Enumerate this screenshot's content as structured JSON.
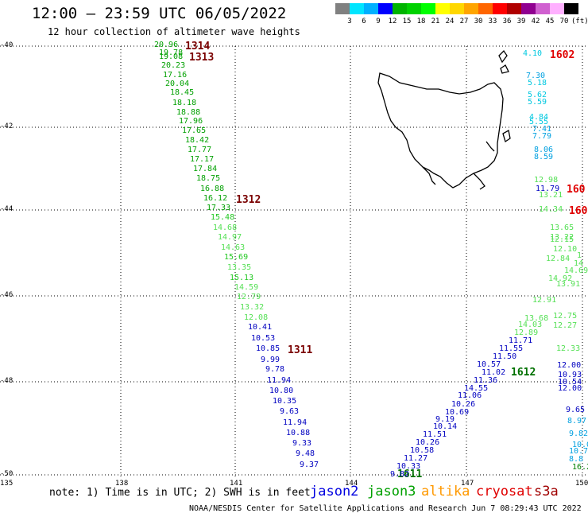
{
  "header": {
    "title": "12:00 — 23:59 UTC 06/05/2022",
    "subtitle": "12 hour collection of altimeter wave heights"
  },
  "color_scale": {
    "labels": [
      "3",
      "6",
      "9",
      "12",
      "15",
      "18",
      "21",
      "24",
      "27",
      "30",
      "33",
      "36",
      "39",
      "42",
      "45",
      "70",
      "(ft)"
    ],
    "colors": [
      "#808080",
      "#00e5ff",
      "#00b0ff",
      "#0000ff",
      "#00b400",
      "#00d200",
      "#00ff00",
      "#ffff00",
      "#ffd700",
      "#ffa500",
      "#ff6600",
      "#ff0000",
      "#b00000",
      "#900090",
      "#d060d0",
      "#ffb0ff",
      "#000000"
    ]
  },
  "axes": {
    "lat_labels": [
      "-40",
      "-42",
      "-44",
      "-46",
      "-48",
      "-50"
    ],
    "lon_labels": [
      "135",
      "138",
      "141",
      "144",
      "147",
      "150"
    ]
  },
  "tracks": [
    {
      "id": "1314",
      "color": "#7a0000"
    },
    {
      "id": "1313",
      "color": "#7a0000"
    },
    {
      "id": "1312",
      "color": "#7a0000"
    },
    {
      "id": "1311",
      "color": "#7a0000"
    },
    {
      "id": "1602",
      "color": "#e00000"
    },
    {
      "id": "160",
      "color": "#e00000"
    },
    {
      "id": "160",
      "color": "#e00000"
    },
    {
      "id": "1612",
      "color": "#007000"
    },
    {
      "id": "1611",
      "color": "#007000"
    }
  ],
  "readings": [
    {
      "v": "20.96",
      "c": "#00a000"
    },
    {
      "v": "19.78",
      "c": "#00a000"
    },
    {
      "v": "19.08",
      "c": "#00a000"
    },
    {
      "v": "20.23",
      "c": "#00a000"
    },
    {
      "v": "17.16",
      "c": "#00a000"
    },
    {
      "v": "20.04",
      "c": "#00a000"
    },
    {
      "v": "18.45",
      "c": "#00a000"
    },
    {
      "v": "18.18",
      "c": "#00a000"
    },
    {
      "v": "18.88",
      "c": "#00a000"
    },
    {
      "v": "17.96",
      "c": "#00a000"
    },
    {
      "v": "17.65",
      "c": "#00a000"
    },
    {
      "v": "18.42",
      "c": "#00a000"
    },
    {
      "v": "17.77",
      "c": "#00a000"
    },
    {
      "v": "17.17",
      "c": "#00a000"
    },
    {
      "v": "17.84",
      "c": "#00a000"
    },
    {
      "v": "18.75",
      "c": "#00a000"
    },
    {
      "v": "16.88",
      "c": "#00a000"
    },
    {
      "v": "16.12",
      "c": "#00a000"
    },
    {
      "v": "17.33",
      "c": "#00a000"
    },
    {
      "v": "15.48",
      "c": "#22c822"
    },
    {
      "v": "14.68",
      "c": "#55e055"
    },
    {
      "v": "14.97",
      "c": "#55e055"
    },
    {
      "v": "14.63",
      "c": "#55e055"
    },
    {
      "v": "15.69",
      "c": "#22c822"
    },
    {
      "v": "13.35",
      "c": "#55e055"
    },
    {
      "v": "15.13",
      "c": "#22c822"
    },
    {
      "v": "14.59",
      "c": "#55e055"
    },
    {
      "v": "12.79",
      "c": "#55e055"
    },
    {
      "v": "13.32",
      "c": "#55e055"
    },
    {
      "v": "12.08",
      "c": "#55e055"
    },
    {
      "v": "10.41",
      "c": "#0000c0"
    },
    {
      "v": "10.53",
      "c": "#0000c0"
    },
    {
      "v": "10.85",
      "c": "#0000c0"
    },
    {
      "v": "9.99",
      "c": "#0000c0"
    },
    {
      "v": "9.78",
      "c": "#0000c0"
    },
    {
      "v": "11.94",
      "c": "#0000c0"
    },
    {
      "v": "10.80",
      "c": "#0000c0"
    },
    {
      "v": "10.35",
      "c": "#0000c0"
    },
    {
      "v": "9.63",
      "c": "#0000c0"
    },
    {
      "v": "11.94",
      "c": "#0000c0"
    },
    {
      "v": "10.88",
      "c": "#0000c0"
    },
    {
      "v": "9.33",
      "c": "#0000c0"
    },
    {
      "v": "9.48",
      "c": "#0000c0"
    },
    {
      "v": "9.37",
      "c": "#0000c0"
    },
    {
      "v": "4.10",
      "c": "#00c8e0"
    },
    {
      "v": "7.30",
      "c": "#00a0e0"
    },
    {
      "v": "5.18",
      "c": "#00c8e0"
    },
    {
      "v": "5.62",
      "c": "#00c8e0"
    },
    {
      "v": "5.59",
      "c": "#00c8e0"
    },
    {
      "v": "4.84",
      "c": "#00c8e0"
    },
    {
      "v": "5.55",
      "c": "#00c8e0"
    },
    {
      "v": "7.41",
      "c": "#00a0e0"
    },
    {
      "v": "7.79",
      "c": "#00a0e0"
    },
    {
      "v": "8.06",
      "c": "#00a0e0"
    },
    {
      "v": "8.59",
      "c": "#00a0e0"
    },
    {
      "v": "12.98",
      "c": "#55e055"
    },
    {
      "v": "11.79",
      "c": "#0000c0"
    },
    {
      "v": "13.21",
      "c": "#55e055"
    },
    {
      "v": "14.34",
      "c": "#55e055"
    },
    {
      "v": "13.65",
      "c": "#55e055"
    },
    {
      "v": "13.22",
      "c": "#55e055"
    },
    {
      "v": "12.15",
      "c": "#55e055"
    },
    {
      "v": "12.10",
      "c": "#55e055"
    },
    {
      "v": "12.84",
      "c": "#55e055"
    },
    {
      "v": "14.69",
      "c": "#55e055"
    },
    {
      "v": "14.92",
      "c": "#55e055"
    },
    {
      "v": "13.91",
      "c": "#55e055"
    },
    {
      "v": "12.91",
      "c": "#55e055"
    },
    {
      "v": "13.68",
      "c": "#55e055"
    },
    {
      "v": "12.75",
      "c": "#55e055"
    },
    {
      "v": "14.03",
      "c": "#55e055"
    },
    {
      "v": "12.27",
      "c": "#55e055"
    },
    {
      "v": "12.89",
      "c": "#55e055"
    },
    {
      "v": "11.71",
      "c": "#0000c0"
    },
    {
      "v": "11.55",
      "c": "#0000c0"
    },
    {
      "v": "12.33",
      "c": "#55e055"
    },
    {
      "v": "11.50",
      "c": "#0000c0"
    },
    {
      "v": "10.57",
      "c": "#0000c0"
    },
    {
      "v": "11.02",
      "c": "#0000c0"
    },
    {
      "v": "12.00",
      "c": "#0000c0"
    },
    {
      "v": "11.36",
      "c": "#0000c0"
    },
    {
      "v": "14.55",
      "c": "#0000c0"
    },
    {
      "v": "10.93",
      "c": "#0000c0"
    },
    {
      "v": "10.54",
      "c": "#0000c0"
    },
    {
      "v": "12.00",
      "c": "#0000c0"
    },
    {
      "v": "11.06",
      "c": "#0000c0"
    },
    {
      "v": "10.26",
      "c": "#0000c0"
    },
    {
      "v": "10.69",
      "c": "#0000c0"
    },
    {
      "v": "9.19",
      "c": "#0000c0"
    },
    {
      "v": "10.14",
      "c": "#0000c0"
    },
    {
      "v": "11.51",
      "c": "#0000c0"
    },
    {
      "v": "10.26",
      "c": "#0000c0"
    },
    {
      "v": "10.58",
      "c": "#0000c0"
    },
    {
      "v": "11.27",
      "c": "#0000c0"
    },
    {
      "v": "10.33",
      "c": "#0000c0"
    },
    {
      "v": "9.82",
      "c": "#0000c0"
    },
    {
      "v": "9.65",
      "c": "#0000c0"
    },
    {
      "v": "8.97",
      "c": "#00a0e0"
    },
    {
      "v": "9.82",
      "c": "#00a0e0"
    },
    {
      "v": "10.0",
      "c": "#00a0e0"
    },
    {
      "v": "10.7",
      "c": "#00a0e0"
    },
    {
      "v": "8.8",
      "c": "#00a0e0"
    },
    {
      "v": "16.2",
      "c": "#008000"
    },
    {
      "v": "14",
      "c": "#55e055"
    },
    {
      "v": "1",
      "c": "#55e055"
    }
  ],
  "footer": {
    "note": "note:  1) Time is in UTC; 2) SWH is in feet",
    "satellites": [
      {
        "name": "jason2",
        "color": "#0000e0"
      },
      {
        "name": "jason3",
        "color": "#00a000"
      },
      {
        "name": "altika",
        "color": "#ff9900"
      },
      {
        "name": "cryosat",
        "color": "#e00000"
      },
      {
        "name": "s3a",
        "color": "#a00000"
      }
    ],
    "credit": "NOAA/NESDIS Center for Satellite Applications and Research    Jun  7 08:29:43 UTC 2022"
  }
}
